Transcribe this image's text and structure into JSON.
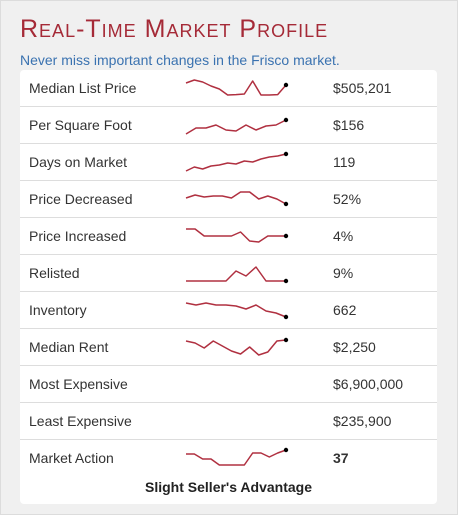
{
  "widget": {
    "title": "Real-Time Market Profile",
    "subtitle": "Never miss important changes in the Frisco market.",
    "verdict": "Slight Seller's Advantage",
    "accent_color": "#a52a37",
    "subtitle_color": "#3a72b0",
    "sparkline_color": "#b03040"
  },
  "rows": [
    {
      "label": "Median List Price",
      "value": "$505,201",
      "trend": [
        0.8,
        0.95,
        0.85,
        0.65,
        0.5,
        0.2,
        0.22,
        0.25,
        0.9,
        0.2,
        0.2,
        0.22,
        0.7
      ]
    },
    {
      "label": "Per Square Foot",
      "value": "$156",
      "trend": [
        0.1,
        0.4,
        0.4,
        0.55,
        0.3,
        0.25,
        0.55,
        0.3,
        0.5,
        0.55,
        0.8
      ]
    },
    {
      "label": "Days on Market",
      "value": "119",
      "trend": [
        0.1,
        0.3,
        0.2,
        0.35,
        0.4,
        0.5,
        0.45,
        0.6,
        0.55,
        0.7,
        0.8,
        0.85,
        0.95
      ]
    },
    {
      "label": "Price Decreased",
      "value": "52%",
      "trend": [
        0.6,
        0.75,
        0.65,
        0.7,
        0.7,
        0.6,
        0.9,
        0.9,
        0.55,
        0.7,
        0.55,
        0.3
      ]
    },
    {
      "label": "Price Increased",
      "value": "4%",
      "trend": [
        0.9,
        0.9,
        0.55,
        0.55,
        0.55,
        0.55,
        0.75,
        0.3,
        0.25,
        0.55,
        0.55,
        0.55
      ]
    },
    {
      "label": "Relisted",
      "value": "9%",
      "trend": [
        0.15,
        0.15,
        0.15,
        0.15,
        0.15,
        0.65,
        0.4,
        0.85,
        0.15,
        0.15,
        0.15
      ]
    },
    {
      "label": "Inventory",
      "value": "662",
      "trend": [
        0.9,
        0.8,
        0.9,
        0.8,
        0.8,
        0.75,
        0.6,
        0.8,
        0.5,
        0.4,
        0.2
      ]
    },
    {
      "label": "Median Rent",
      "value": "$2,250",
      "trend": [
        0.85,
        0.75,
        0.5,
        0.85,
        0.6,
        0.35,
        0.2,
        0.55,
        0.15,
        0.3,
        0.85,
        0.9
      ]
    },
    {
      "label": "Most Expensive",
      "value": "$6,900,000"
    },
    {
      "label": "Least Expensive",
      "value": "$235,900"
    },
    {
      "label": "Market Action",
      "value": "37",
      "value_bold": true,
      "trend": [
        0.75,
        0.75,
        0.5,
        0.5,
        0.2,
        0.2,
        0.2,
        0.2,
        0.8,
        0.8,
        0.6,
        0.8,
        0.95
      ]
    }
  ]
}
